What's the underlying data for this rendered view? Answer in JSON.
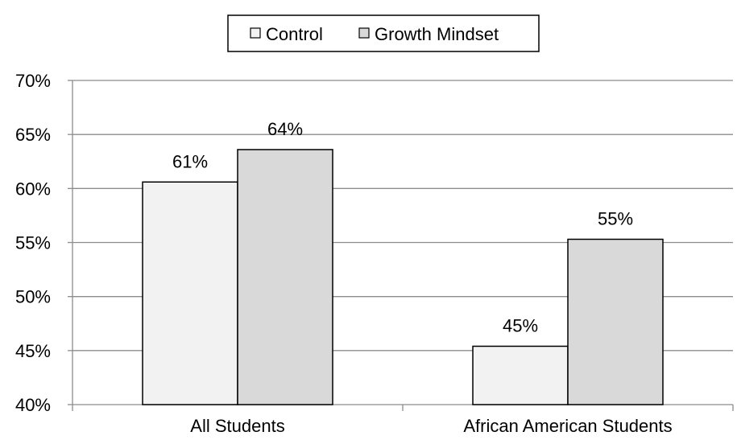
{
  "chart_data": {
    "type": "bar",
    "title": "",
    "xlabel": "",
    "ylabel": "",
    "categories": [
      "All Students",
      "African American Students"
    ],
    "series": [
      {
        "name": "Control",
        "values": [
          60.6,
          45.4
        ],
        "labels": [
          "61%",
          "45%"
        ],
        "color": "#f2f2f2"
      },
      {
        "name": "Growth Mindset",
        "values": [
          63.6,
          55.3
        ],
        "labels": [
          "64%",
          "55%"
        ],
        "color": "#d9d9d9"
      }
    ],
    "ylim": [
      40,
      70
    ],
    "yticks": [
      {
        "value": 40,
        "label": "40%"
      },
      {
        "value": 45,
        "label": "45%"
      },
      {
        "value": 50,
        "label": "50%"
      },
      {
        "value": 55,
        "label": "55%"
      },
      {
        "value": 60,
        "label": "60%"
      },
      {
        "value": 65,
        "label": "65%"
      },
      {
        "value": 70,
        "label": "70%"
      }
    ],
    "grid": true,
    "legend": "top-center",
    "colors": {
      "gridline": "#8c8c8c",
      "axis": "#8c8c8c",
      "bar_outline": "#000000",
      "text": "#000000"
    }
  }
}
